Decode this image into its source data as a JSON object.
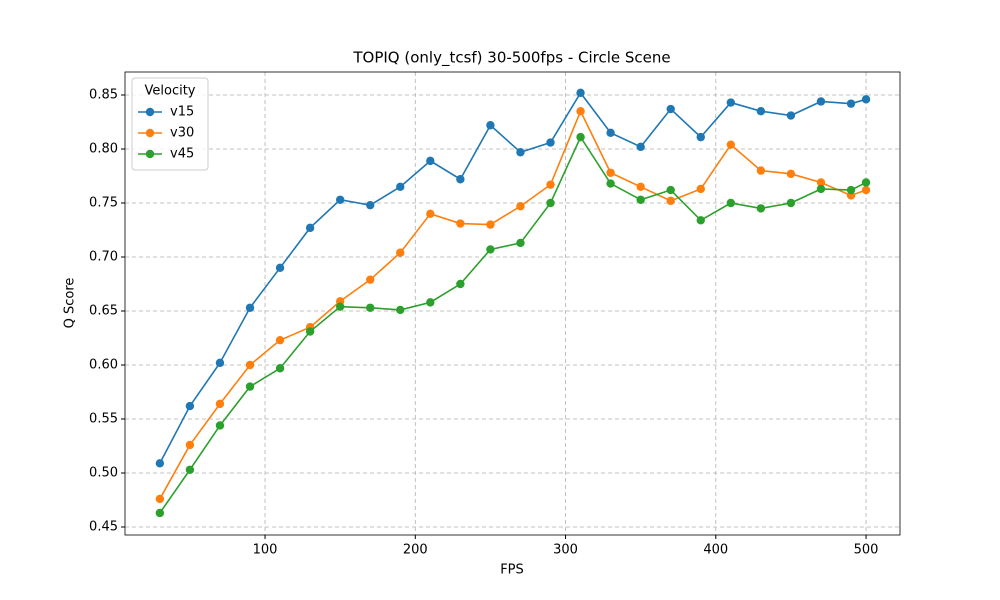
{
  "chart_data": {
    "type": "line",
    "title": "TOPIQ (only_tcsf) 30-500fps - Circle Scene",
    "x_label": "FPS",
    "y_label": "Q Score",
    "x": [
      30,
      50,
      70,
      90,
      110,
      130,
      150,
      170,
      190,
      210,
      230,
      250,
      270,
      290,
      310,
      330,
      350,
      370,
      390,
      410,
      430,
      450,
      470,
      490,
      500
    ],
    "series": [
      {
        "name": "v15",
        "color": "#1f77b4",
        "values": [
          0.509,
          0.562,
          0.602,
          0.653,
          0.69,
          0.727,
          0.753,
          0.748,
          0.765,
          0.789,
          0.772,
          0.822,
          0.797,
          0.806,
          0.852,
          0.815,
          0.802,
          0.837,
          0.811,
          0.843,
          0.835,
          0.831,
          0.844,
          0.842,
          0.846
        ]
      },
      {
        "name": "v30",
        "color": "#ff7f0e",
        "values": [
          0.476,
          0.526,
          0.564,
          0.6,
          0.623,
          0.635,
          0.659,
          0.679,
          0.704,
          0.74,
          0.731,
          0.73,
          0.747,
          0.767,
          0.835,
          0.778,
          0.765,
          0.752,
          0.763,
          0.804,
          0.78,
          0.777,
          0.769,
          0.757,
          0.762
        ]
      },
      {
        "name": "v45",
        "color": "#2ca02c",
        "values": [
          0.463,
          0.503,
          0.544,
          0.58,
          0.597,
          0.631,
          0.654,
          0.653,
          0.651,
          0.658,
          0.675,
          0.707,
          0.713,
          0.75,
          0.811,
          0.768,
          0.753,
          0.762,
          0.734,
          0.75,
          0.745,
          0.75,
          0.763,
          0.762,
          0.769
        ]
      }
    ],
    "xlim": [
      6.8,
      522.6
    ],
    "ylim": [
      0.4426,
      0.8713
    ],
    "xticks": [
      100,
      200,
      300,
      400,
      500
    ],
    "yticks": [
      0.45,
      {
        "value": 0.5,
        "label": "0.50"
      },
      0.55,
      {
        "value": 0.6,
        "label": "0.60"
      },
      0.65,
      {
        "value": 0.7,
        "label": "0.70"
      },
      0.75,
      {
        "value": 0.8,
        "label": "0.80"
      },
      0.85
    ],
    "grid": true,
    "legend_title": "Velocity",
    "legend_position": "upper-left"
  }
}
